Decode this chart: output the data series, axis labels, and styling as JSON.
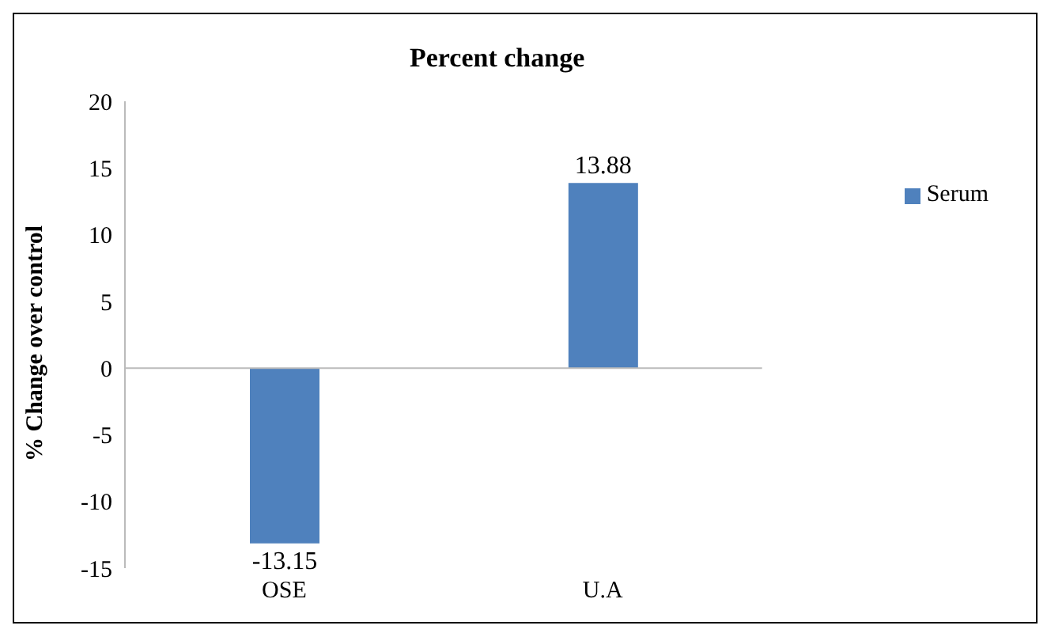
{
  "chart_data": {
    "type": "bar",
    "title": "Percent change",
    "ylabel": "% Change over control",
    "categories": [
      "OSE",
      "U.A"
    ],
    "series": [
      {
        "name": "Serum",
        "color": "#4f81bd",
        "values": [
          -13.15,
          13.88
        ]
      }
    ],
    "ylim": [
      -15,
      20
    ],
    "yticks": [
      -15,
      -10,
      -5,
      0,
      5,
      10,
      15,
      20
    ],
    "data_labels": true,
    "legend": "right"
  }
}
